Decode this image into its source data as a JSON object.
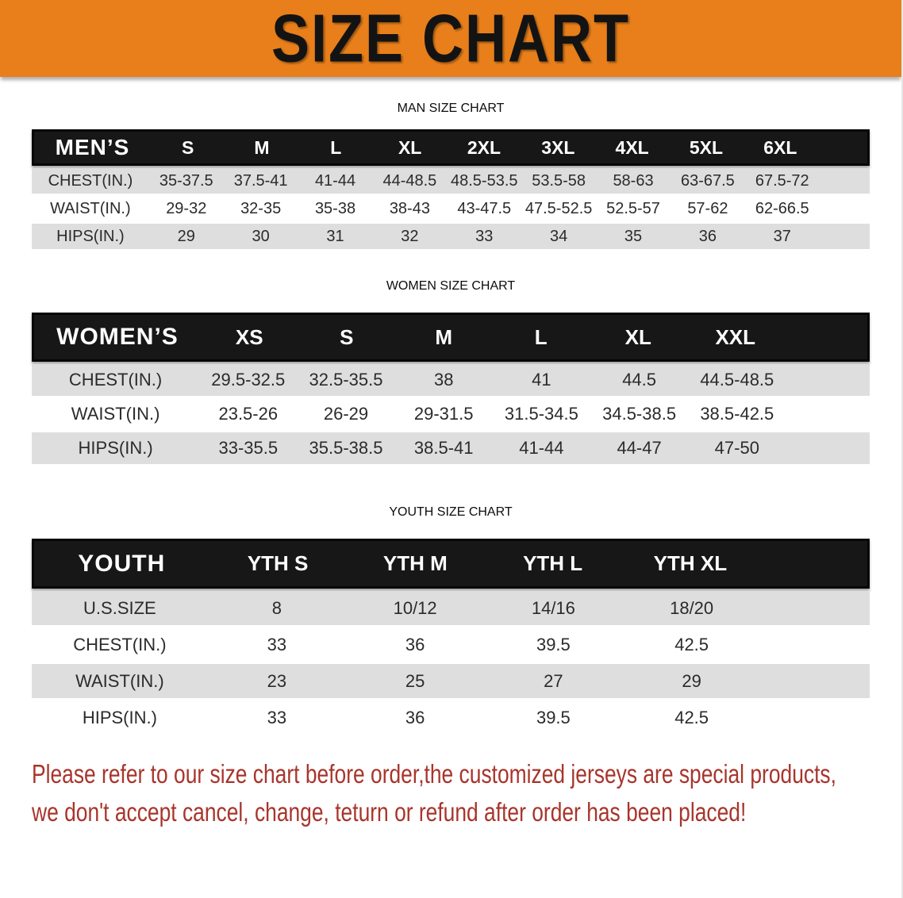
{
  "banner": {
    "title": "SIZE CHART",
    "bg_color": "#e87f1a"
  },
  "sections": [
    {
      "heading": "MAN SIZE CHART",
      "header_label": "MEN’S",
      "columns": [
        "S",
        "M",
        "L",
        "XL",
        "2XL",
        "3XL",
        "4XL",
        "5XL",
        "6XL"
      ],
      "rows": [
        {
          "label": "CHEST(IN.)",
          "values": [
            "35-37.5",
            "37.5-41",
            "41-44",
            "44-48.5",
            "48.5-53.5",
            "53.5-58",
            "58-63",
            "63-67.5",
            "67.5-72"
          ]
        },
        {
          "label": "WAIST(IN.)",
          "values": [
            "29-32",
            "32-35",
            "35-38",
            "38-43",
            "43-47.5",
            "47.5-52.5",
            "52.5-57",
            "57-62",
            "62-66.5"
          ]
        },
        {
          "label": "HIPS(IN.)",
          "values": [
            "29",
            "30",
            "31",
            "32",
            "33",
            "34",
            "35",
            "36",
            "37"
          ]
        }
      ]
    },
    {
      "heading": "WOMEN SIZE CHART",
      "header_label": "WOMEN’S",
      "columns": [
        "XS",
        "S",
        "M",
        "L",
        "XL",
        "XXL"
      ],
      "rows": [
        {
          "label": "CHEST(IN.)",
          "values": [
            "29.5-32.5",
            "32.5-35.5",
            "38",
            "41",
            "44.5",
            "44.5-48.5"
          ]
        },
        {
          "label": "WAIST(IN.)",
          "values": [
            "23.5-26",
            "26-29",
            "29-31.5",
            "31.5-34.5",
            "34.5-38.5",
            "38.5-42.5"
          ]
        },
        {
          "label": "HIPS(IN.)",
          "values": [
            "33-35.5",
            "35.5-38.5",
            "38.5-41",
            "41-44",
            "44-47",
            "47-50"
          ]
        }
      ]
    },
    {
      "heading": "YOUTH SIZE CHART",
      "header_label": "YOUTH",
      "columns": [
        "YTH S",
        "YTH M",
        "YTH L",
        "YTH XL"
      ],
      "rows": [
        {
          "label": "U.S.SIZE",
          "values": [
            "8",
            "10/12",
            "14/16",
            "18/20"
          ]
        },
        {
          "label": "CHEST(IN.)",
          "values": [
            "33",
            "36",
            "39.5",
            "42.5"
          ]
        },
        {
          "label": "WAIST(IN.)",
          "values": [
            "23",
            "25",
            "27",
            "29"
          ]
        },
        {
          "label": "HIPS(IN.)",
          "values": [
            "33",
            "36",
            "39.5",
            "42.5"
          ]
        }
      ]
    }
  ],
  "disclaimer": {
    "line1": "Please refer to our size chart before order,the customized jerseys are special products,",
    "line2": "we don't accept cancel, change, teturn or refund after order has been placed!",
    "color": "#a8352c"
  },
  "colors": {
    "banner_orange": "#e87f1a",
    "table_header_bg": "#171717",
    "table_header_text": "#ffffff",
    "row_stripe_gray": "#dedede",
    "body_text": "#2b2b2b",
    "disclaimer_red": "#a8352c"
  }
}
